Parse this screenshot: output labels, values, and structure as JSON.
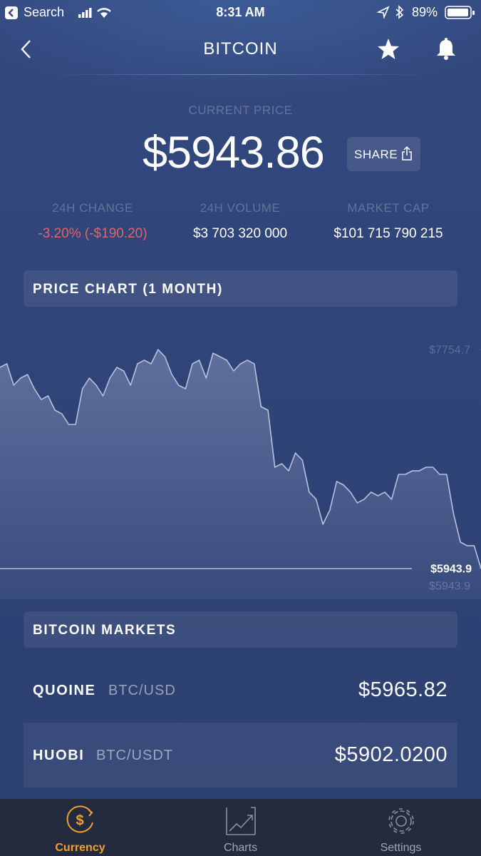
{
  "status_bar": {
    "back_label": "Search",
    "time": "8:31 AM",
    "battery": "89%"
  },
  "header": {
    "title": "BITCOIN"
  },
  "current_price": {
    "label": "CURRENT PRICE",
    "value": "$5943.86",
    "share": "SHARE"
  },
  "stats": [
    {
      "label": "24H CHANGE",
      "value": "-3.20% (-$190.20)"
    },
    {
      "label": "24H VOLUME",
      "value": "$3 703 320 000"
    },
    {
      "label": "MARKET CAP",
      "value": "$101 715 790 215"
    }
  ],
  "price_chart_section": {
    "title": "PRICE CHART (1 MONTH)"
  },
  "chart_data": {
    "type": "area",
    "color": "#b9c2dc",
    "values": [
      7608,
      7637,
      7460,
      7519,
      7549,
      7431,
      7342,
      7372,
      7254,
      7224,
      7136,
      7136,
      7431,
      7519,
      7460,
      7372,
      7519,
      7608,
      7578,
      7460,
      7637,
      7667,
      7637,
      7754.7,
      7696,
      7549,
      7460,
      7431,
      7637,
      7667,
      7519,
      7725,
      7696,
      7667,
      7578,
      7637,
      7667,
      7637,
      7283,
      7254,
      6782,
      6811,
      6752,
      6900,
      6841,
      6576,
      6517,
      6310,
      6428,
      6664,
      6635,
      6576,
      6487,
      6517,
      6576,
      6546,
      6576,
      6517,
      6723,
      6723,
      6752,
      6752,
      6782,
      6782,
      6723,
      6723,
      6399,
      6163,
      6133,
      6133,
      5943.9
    ],
    "ylim": [
      5750,
      8050
    ],
    "yticks": [
      {
        "value": 7754.7,
        "label": "$7754.7"
      },
      {
        "value": 5943.9,
        "label": "$5943.9"
      }
    ],
    "current": {
      "value": 5943.9,
      "label": "$5943.9"
    }
  },
  "markets": {
    "title": "BITCOIN MARKETS",
    "rows": [
      {
        "exchange": "QUOINE",
        "pair": "BTC/USD",
        "price": "$5965.82"
      },
      {
        "exchange": "HUOBI",
        "pair": "BTC/USDT",
        "price": "$5902.0200"
      }
    ]
  },
  "tab_bar": [
    "Currency",
    "Charts",
    "Settings"
  ]
}
